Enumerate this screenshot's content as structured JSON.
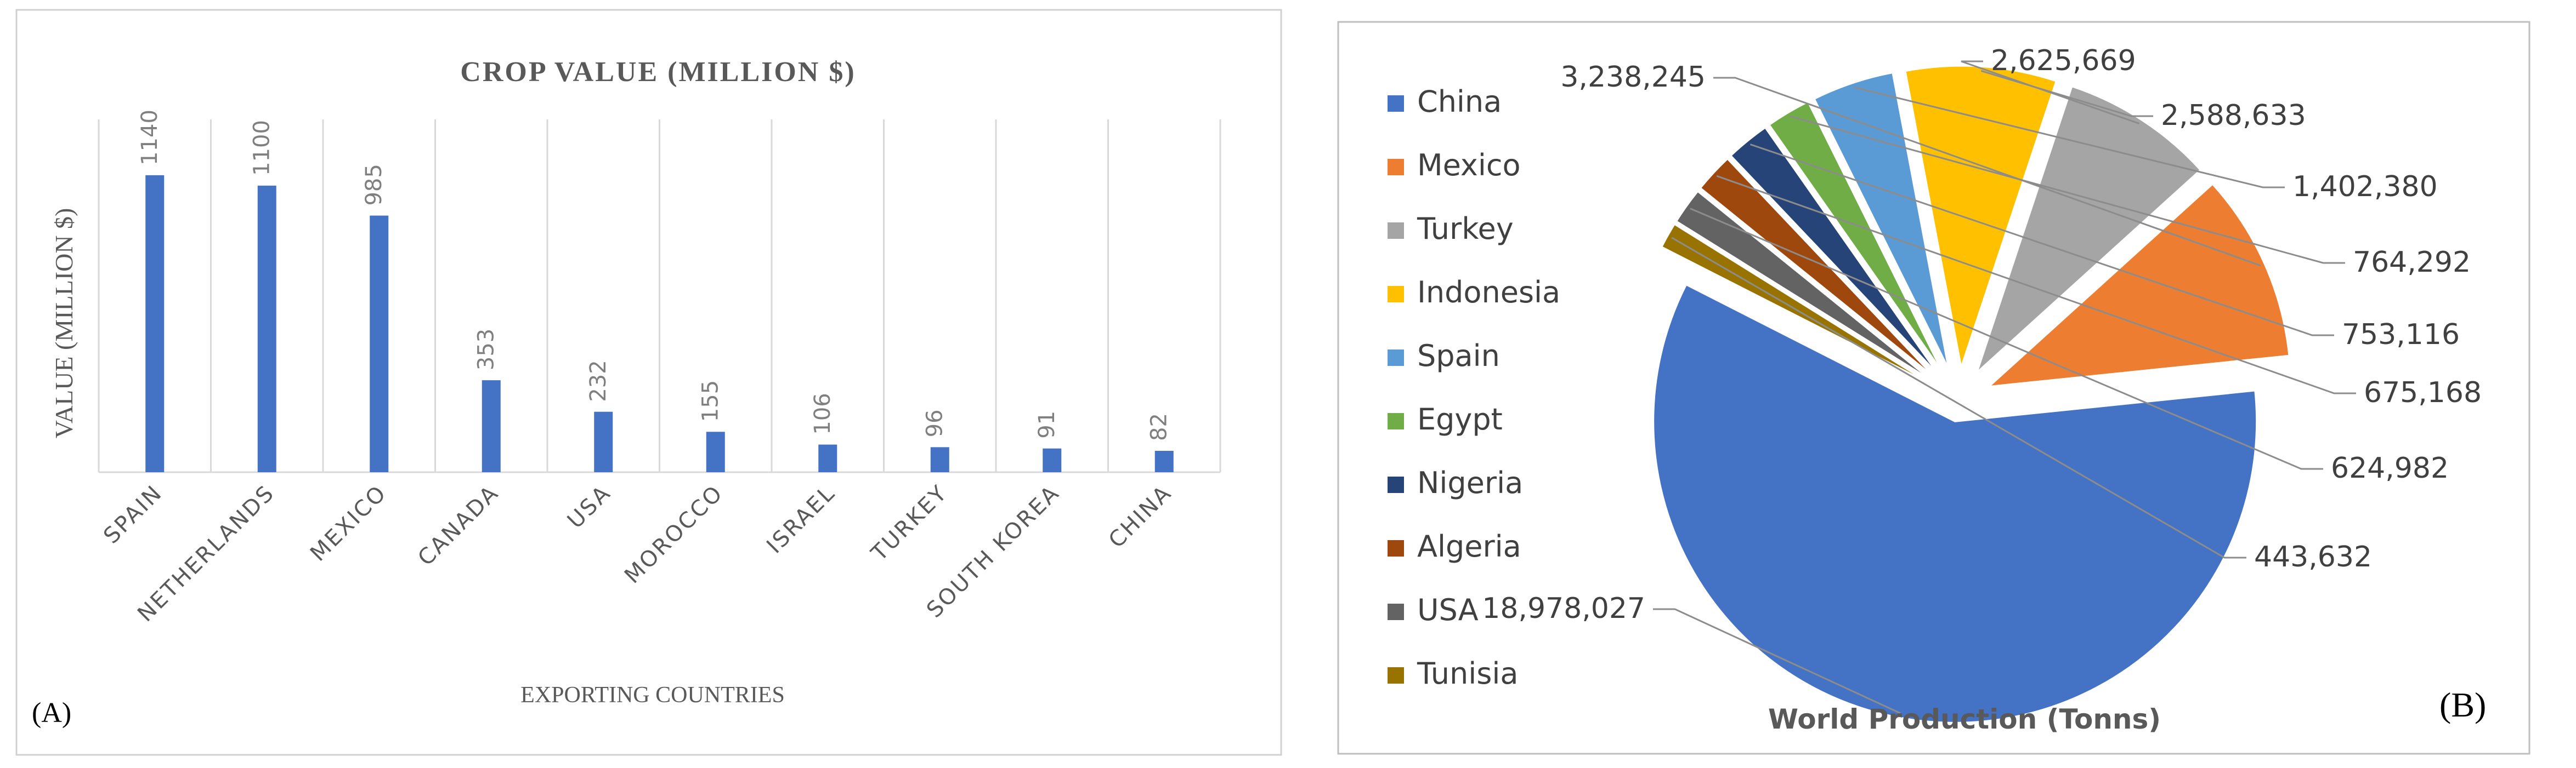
{
  "panel_a": {
    "tag": "(A)",
    "colors": {
      "bar": "#4472C4",
      "grid": "#D9D9D9",
      "frame": "#D0D0D0",
      "axis_text": "#595959",
      "label_text": "#7F7F7F"
    }
  },
  "panel_b": {
    "tag": "(B)",
    "colors": {
      "frame": "#BFBFBF",
      "text": "#404040",
      "leader": "#8C8C8C"
    }
  },
  "chart_data": [
    {
      "type": "bar",
      "title": "CROP VALUE (MILLION $)",
      "xlabel": "EXPORTING COUNTRIES",
      "ylabel": "VALUE (MILLION $)",
      "categories": [
        "SPAIN",
        "NETHERLANDS",
        "MEXICO",
        "CANADA",
        "USA",
        "MOROCCO",
        "ISRAEL",
        "TURKEY",
        "SOUTH KOREA",
        "CHINA"
      ],
      "values": [
        1140,
        1100,
        985,
        353,
        232,
        155,
        106,
        96,
        91,
        82
      ],
      "data_labels": [
        "1140",
        "1100",
        "985",
        "353",
        "232",
        "155",
        "106",
        "96",
        "91",
        "82"
      ],
      "ylim": [
        0,
        1200
      ],
      "grid": "vertical separators between categories",
      "legend": "none"
    },
    {
      "type": "pie",
      "title": "World Production (Tonns)",
      "categories": [
        "China",
        "Mexico",
        "Turkey",
        "Indonesia",
        "Spain",
        "Egypt",
        "Nigeria",
        "Algeria",
        "USA",
        "Tunisia"
      ],
      "values": [
        18978027,
        3238245,
        2625669,
        2588633,
        1402380,
        764292,
        753116,
        675168,
        624982,
        443632
      ],
      "data_labels": [
        "18,978,027",
        "3,238,245",
        "2,625,669",
        "2,588,633",
        "1,402,380",
        "764,292",
        "753,116",
        "675,168",
        "624,982",
        "443,632"
      ],
      "colors": [
        "#4472C4",
        "#ED7D31",
        "#A5A5A5",
        "#FFC000",
        "#5B9BD5",
        "#70AD47",
        "#264478",
        "#9E480E",
        "#636363",
        "#997300"
      ],
      "exploded": true,
      "legend": "left"
    }
  ]
}
